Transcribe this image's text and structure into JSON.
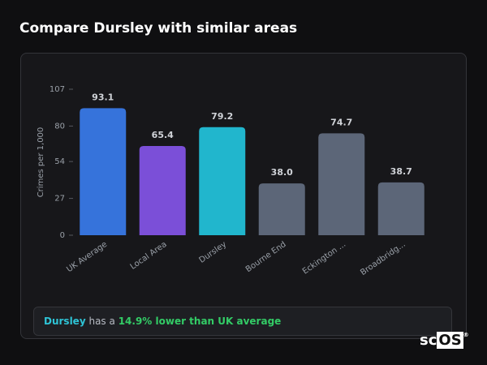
{
  "header": {
    "title": "Compare Dursley with similar areas"
  },
  "chart_data": {
    "type": "bar",
    "y_label": "Crimes per 1,000",
    "categories": [
      "UK Average",
      "Local Area",
      "Dursley",
      "Bourne End",
      "Eckington ...",
      "Broadbridg..."
    ],
    "values": [
      93.1,
      65.4,
      79.2,
      38.0,
      74.7,
      38.7
    ],
    "value_labels": [
      "93.1",
      "65.4",
      "79.2",
      "38.0",
      "74.7",
      "38.7"
    ],
    "colors": [
      "#3673db",
      "#7b4fd8",
      "#21b6cd",
      "#5c6678",
      "#5c6678",
      "#5c6678"
    ],
    "ylim": [
      0,
      107
    ],
    "yticks": [
      0,
      27,
      54,
      80,
      107
    ]
  },
  "footer": {
    "area": "Dursley",
    "text": "has a",
    "highlight": "14.9% lower than UK average"
  },
  "logo": {
    "left": "sc",
    "right": "OS",
    "mark": "®"
  }
}
